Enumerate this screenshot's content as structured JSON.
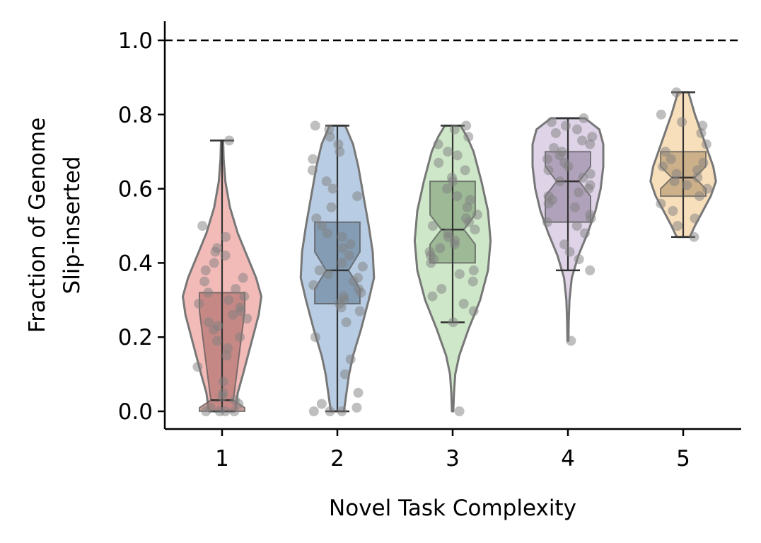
{
  "chart_data": {
    "type": "violin",
    "title": "",
    "xlabel": "Novel Task Complexity",
    "ylabel_lines": [
      "Fraction of Genome",
      "Slip-inserted"
    ],
    "ylim": [
      -0.05,
      1.05
    ],
    "categories": [
      "1",
      "2",
      "3",
      "4",
      "5"
    ],
    "yticks": [
      "0.0",
      "0.2",
      "0.4",
      "0.6",
      "0.8",
      "1.0"
    ],
    "ytick_values": [
      0,
      0.2,
      0.4,
      0.6,
      0.8,
      1.0
    ],
    "reference_line": {
      "y": 1.0,
      "style": "dashed",
      "color": "#000000"
    },
    "grid": false,
    "series": [
      {
        "category": "1",
        "color": "#e8837e",
        "min": 0.0,
        "q1": 0.0,
        "median": 0.03,
        "q3": 0.32,
        "max": 0.73,
        "notch_low": 0.01,
        "notch_high": 0.27,
        "violin": [
          [
            0.0,
            0.1
          ],
          [
            0.05,
            0.12
          ],
          [
            0.1,
            0.16
          ],
          [
            0.18,
            0.22
          ],
          [
            0.26,
            0.28
          ],
          [
            0.31,
            0.3
          ],
          [
            0.36,
            0.26
          ],
          [
            0.42,
            0.19
          ],
          [
            0.48,
            0.12
          ],
          [
            0.55,
            0.06
          ],
          [
            0.62,
            0.025
          ],
          [
            0.68,
            0.012
          ],
          [
            0.73,
            0.008
          ]
        ],
        "points": [
          0,
          0,
          0,
          0,
          0.01,
          0.02,
          0.03,
          0.04,
          0.05,
          0.08,
          0.12,
          0.15,
          0.17,
          0.19,
          0.2,
          0.22,
          0.23,
          0.24,
          0.25,
          0.26,
          0.27,
          0.28,
          0.29,
          0.3,
          0.31,
          0.32,
          0.33,
          0.35,
          0.36,
          0.38,
          0.4,
          0.42,
          0.43,
          0.44,
          0.47,
          0.5,
          0.73
        ]
      },
      {
        "category": "2",
        "color": "#7da3cc",
        "min": 0.0,
        "q1": 0.29,
        "median": 0.38,
        "q3": 0.51,
        "max": 0.77,
        "notch_low": 0.33,
        "notch_high": 0.43,
        "violin": [
          [
            0.0,
            0.05
          ],
          [
            0.05,
            0.07
          ],
          [
            0.1,
            0.09
          ],
          [
            0.15,
            0.12
          ],
          [
            0.22,
            0.18
          ],
          [
            0.3,
            0.24
          ],
          [
            0.36,
            0.28
          ],
          [
            0.43,
            0.27
          ],
          [
            0.5,
            0.24
          ],
          [
            0.58,
            0.2
          ],
          [
            0.66,
            0.16
          ],
          [
            0.72,
            0.12
          ],
          [
            0.77,
            0.06
          ]
        ],
        "points": [
          0,
          0,
          0,
          0.01,
          0.02,
          0.05,
          0.1,
          0.14,
          0.2,
          0.24,
          0.27,
          0.28,
          0.29,
          0.3,
          0.31,
          0.32,
          0.33,
          0.34,
          0.35,
          0.36,
          0.37,
          0.38,
          0.39,
          0.4,
          0.42,
          0.44,
          0.45,
          0.47,
          0.48,
          0.5,
          0.52,
          0.55,
          0.58,
          0.6,
          0.62,
          0.65,
          0.68,
          0.7,
          0.72,
          0.74,
          0.76,
          0.77
        ]
      },
      {
        "category": "3",
        "color": "#a6d49a",
        "min": 0.24,
        "q1": 0.4,
        "median": 0.49,
        "q3": 0.62,
        "max": 0.77,
        "notch_low": 0.45,
        "notch_high": 0.53,
        "violin": [
          [
            0.0,
            0.005
          ],
          [
            0.05,
            0.01
          ],
          [
            0.1,
            0.02
          ],
          [
            0.15,
            0.05
          ],
          [
            0.22,
            0.12
          ],
          [
            0.3,
            0.21
          ],
          [
            0.38,
            0.27
          ],
          [
            0.46,
            0.29
          ],
          [
            0.54,
            0.27
          ],
          [
            0.62,
            0.22
          ],
          [
            0.7,
            0.16
          ],
          [
            0.74,
            0.11
          ],
          [
            0.77,
            0.06
          ]
        ],
        "points": [
          0,
          0.24,
          0.27,
          0.29,
          0.31,
          0.33,
          0.35,
          0.37,
          0.38,
          0.4,
          0.41,
          0.42,
          0.43,
          0.44,
          0.45,
          0.46,
          0.47,
          0.48,
          0.49,
          0.5,
          0.51,
          0.52,
          0.53,
          0.55,
          0.57,
          0.58,
          0.6,
          0.62,
          0.63,
          0.65,
          0.67,
          0.69,
          0.7,
          0.72,
          0.74,
          0.76,
          0.77
        ]
      },
      {
        "category": "4",
        "color": "#c4afd6",
        "min": 0.38,
        "q1": 0.51,
        "median": 0.62,
        "q3": 0.7,
        "max": 0.79,
        "notch_low": 0.58,
        "notch_high": 0.66,
        "violin": [
          [
            0.19,
            0.004
          ],
          [
            0.24,
            0.006
          ],
          [
            0.3,
            0.012
          ],
          [
            0.36,
            0.03
          ],
          [
            0.42,
            0.08
          ],
          [
            0.48,
            0.15
          ],
          [
            0.54,
            0.21
          ],
          [
            0.6,
            0.25
          ],
          [
            0.66,
            0.27
          ],
          [
            0.72,
            0.27
          ],
          [
            0.76,
            0.24
          ],
          [
            0.79,
            0.13
          ]
        ],
        "points": [
          0.19,
          0.38,
          0.41,
          0.43,
          0.45,
          0.48,
          0.5,
          0.51,
          0.52,
          0.53,
          0.55,
          0.56,
          0.57,
          0.58,
          0.59,
          0.6,
          0.61,
          0.62,
          0.63,
          0.64,
          0.65,
          0.66,
          0.67,
          0.68,
          0.69,
          0.7,
          0.71,
          0.72,
          0.73,
          0.74,
          0.75,
          0.76,
          0.77,
          0.78,
          0.79
        ]
      },
      {
        "category": "5",
        "color": "#f2c485",
        "min": 0.47,
        "q1": 0.58,
        "median": 0.63,
        "q3": 0.7,
        "max": 0.86,
        "notch_low": 0.6,
        "notch_high": 0.66,
        "violin": [
          [
            0.47,
            0.05
          ],
          [
            0.5,
            0.09
          ],
          [
            0.54,
            0.15
          ],
          [
            0.58,
            0.21
          ],
          [
            0.62,
            0.25
          ],
          [
            0.66,
            0.23
          ],
          [
            0.7,
            0.19
          ],
          [
            0.75,
            0.14
          ],
          [
            0.8,
            0.09
          ],
          [
            0.86,
            0.04
          ]
        ],
        "points": [
          0.47,
          0.5,
          0.52,
          0.54,
          0.56,
          0.58,
          0.6,
          0.61,
          0.62,
          0.63,
          0.64,
          0.65,
          0.66,
          0.67,
          0.68,
          0.7,
          0.72,
          0.75,
          0.77,
          0.78,
          0.8,
          0.86
        ]
      }
    ]
  }
}
